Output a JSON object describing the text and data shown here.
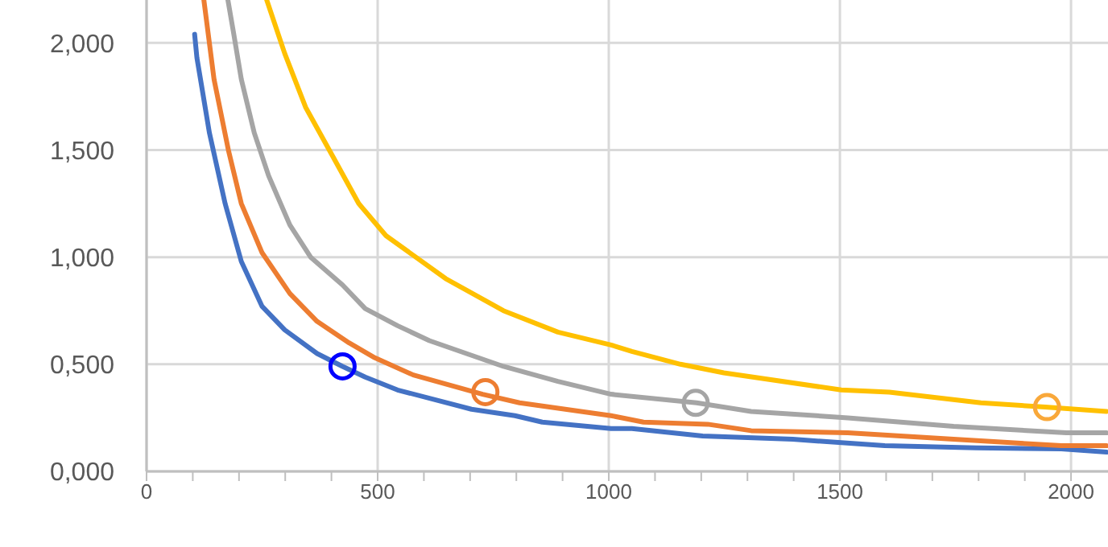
{
  "chart_data": {
    "type": "line",
    "xlim": [
      0,
      2080
    ],
    "ylim": [
      0,
      2.2
    ],
    "xticks": [
      0,
      {
        "value": 100,
        "label": null
      },
      {
        "value": 200,
        "label": null
      },
      {
        "value": 300,
        "label": null
      },
      {
        "value": 400,
        "label": null
      },
      500,
      {
        "value": 600,
        "label": null
      },
      {
        "value": 700,
        "label": null
      },
      {
        "value": 800,
        "label": null
      },
      {
        "value": 900,
        "label": null
      },
      1000,
      {
        "value": 1100,
        "label": null
      },
      {
        "value": 1200,
        "label": null
      },
      {
        "value": 1300,
        "label": null
      },
      {
        "value": 1400,
        "label": null
      },
      1500,
      {
        "value": 1600,
        "label": null
      },
      {
        "value": 1700,
        "label": null
      },
      {
        "value": 1800,
        "label": null
      },
      {
        "value": 1900,
        "label": null
      },
      2000
    ],
    "yticks": [
      {
        "value": 0,
        "label": "0,000"
      },
      {
        "value": 0.5,
        "label": "0,500"
      },
      {
        "value": 1,
        "label": "1,000"
      },
      {
        "value": 1.5,
        "label": "1,500"
      },
      {
        "value": 2,
        "label": "2,000"
      }
    ],
    "grid": true,
    "series": [
      {
        "color": "#4472c4",
        "x": [
          104,
          109,
          136,
          170,
          205,
          250,
          299,
          369,
          424,
          473,
          543,
          703,
          797,
          856,
          1005,
          1050,
          1203,
          1398,
          1597,
          1795,
          1979,
          2077
        ],
        "values": [
          2.04,
          1.93,
          1.58,
          1.25,
          0.98,
          0.77,
          0.66,
          0.55,
          0.49,
          0.44,
          0.38,
          0.29,
          0.26,
          0.23,
          0.2,
          0.2,
          0.165,
          0.15,
          0.12,
          0.11,
          0.105,
          0.09
        ]
      },
      {
        "color": "#ed7d31",
        "x": [
          124,
          146,
          177,
          205,
          250,
          310,
          369,
          438,
          494,
          577,
          727,
          807,
          1005,
          1075,
          1214,
          1308,
          1517,
          1746,
          1979,
          2077
        ],
        "values": [
          2.2,
          1.83,
          1.5,
          1.25,
          1.02,
          0.83,
          0.7,
          0.6,
          0.53,
          0.45,
          0.36,
          0.32,
          0.26,
          0.23,
          0.22,
          0.19,
          0.18,
          0.15,
          0.12,
          0.12
        ]
      },
      {
        "color": "#a5a5a5",
        "x": [
          176,
          188,
          205,
          233,
          264,
          310,
          355,
          424,
          473,
          543,
          612,
          692,
          772,
          890,
          1005,
          1190,
          1308,
          1517,
          1746,
          1990,
          2077
        ],
        "values": [
          2.2,
          2.05,
          1.83,
          1.58,
          1.38,
          1.15,
          1.0,
          0.87,
          0.76,
          0.68,
          0.61,
          0.55,
          0.49,
          0.42,
          0.36,
          0.32,
          0.28,
          0.25,
          0.21,
          0.18,
          0.18
        ]
      },
      {
        "color": "#ffc000",
        "x": [
          260,
          299,
          344,
          403,
          459,
          518,
          647,
          772,
          890,
          1005,
          1050,
          1155,
          1249,
          1503,
          1607,
          1805,
          1944,
          2077
        ],
        "values": [
          2.2,
          1.95,
          1.7,
          1.47,
          1.25,
          1.1,
          0.9,
          0.75,
          0.65,
          0.59,
          0.56,
          0.5,
          0.46,
          0.38,
          0.37,
          0.32,
          0.3,
          0.28
        ]
      },
      {
        "type": "scatter",
        "marker": "circle",
        "color": "#0000ff",
        "x": [
          424
        ],
        "values": [
          0.49
        ]
      },
      {
        "type": "scatter",
        "marker": "circle",
        "color": "#ed7d31",
        "x": [
          733
        ],
        "values": [
          0.37
        ]
      },
      {
        "type": "scatter",
        "marker": "circle",
        "color": "#a5a5a5",
        "x": [
          1188
        ],
        "values": [
          0.32
        ]
      },
      {
        "type": "scatter",
        "marker": "circle",
        "color": "#f9a83a",
        "x": [
          1948
        ],
        "values": [
          0.3
        ]
      }
    ]
  }
}
